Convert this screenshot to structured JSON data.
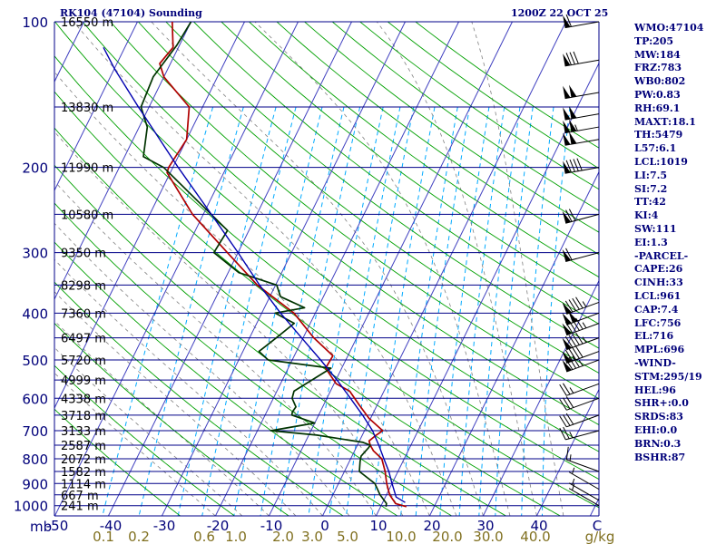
{
  "header": {
    "station": "RK104 (47104) Sounding",
    "time": "1200Z 22 OCT 25"
  },
  "indices": [
    "WMO:47104",
    "TP:205",
    "MW:184",
    "FRZ:783",
    "WB0:802",
    "PW:0.83",
    "RH:69.1",
    "MAXT:18.1",
    "TH:5479",
    "L57:6.1",
    "LCL:1019",
    "LI:7.5",
    "SI:7.2",
    "TT:42",
    "KI:4",
    "SW:111",
    "EI:1.3",
    "-PARCEL-",
    "CAPE:26",
    "CINH:33",
    "LCL:961",
    "CAP:7.4",
    "LFC:756",
    "EL:716",
    "MPL:696",
    "-WIND-",
    "STM:295/19",
    "HEL:96",
    "SHR+:0.0",
    "SRDS:83",
    "EHI:0.0",
    "BRN:0.3",
    "BSHR:87"
  ],
  "colors": {
    "isobar": "#000088",
    "isotherm": "#4040c0",
    "dry_adiabat": "#00a000",
    "moist_adiabat": "#808080",
    "mixing_ratio": "#00aaff",
    "temperature": "#b00000",
    "dewpoint": "#003300",
    "parcel": "#0000b0",
    "label": "#00007a",
    "mixing_label": "#807020"
  },
  "chart_data": {
    "type": "skew-t",
    "pressure_axis": {
      "unit_label": "mb",
      "ticks": [
        100,
        200,
        300,
        400,
        500,
        600,
        700,
        800,
        900,
        1000
      ],
      "ylim": [
        1050,
        100
      ],
      "scale": "log"
    },
    "temperature_axis": {
      "unit_label": "C",
      "ticks": [
        -50,
        -40,
        -30,
        -20,
        -10,
        0,
        10,
        20,
        30,
        40
      ],
      "xlim": [
        -50,
        40
      ]
    },
    "mixing_ratio_axis": {
      "unit_label": "g/kg",
      "ticks": [
        "0.1",
        "0.2",
        "0.6",
        "1.0",
        "2.0",
        "3.0",
        "5.0",
        "10.0",
        "20.0",
        "30.0",
        "40.0"
      ]
    },
    "height_levels": [
      {
        "p": 100,
        "label": "16550 m"
      },
      {
        "p": 150,
        "label": "13830 m"
      },
      {
        "p": 200,
        "label": "11990 m"
      },
      {
        "p": 250,
        "label": "10580 m"
      },
      {
        "p": 300,
        "label": "9350 m"
      },
      {
        "p": 350,
        "label": "8298 m"
      },
      {
        "p": 400,
        "label": "7360 m"
      },
      {
        "p": 450,
        "label": "6497 m"
      },
      {
        "p": 500,
        "label": "5720 m"
      },
      {
        "p": 550,
        "label": "4999 m"
      },
      {
        "p": 600,
        "label": "4338 m"
      },
      {
        "p": 650,
        "label": "3718 m"
      },
      {
        "p": 700,
        "label": "3133 m"
      },
      {
        "p": 750,
        "label": "2587 m"
      },
      {
        "p": 800,
        "label": "2072 m"
      },
      {
        "p": 850,
        "label": "1582 m"
      },
      {
        "p": 900,
        "label": "1114 m"
      },
      {
        "p": 950,
        "label": "667 m"
      },
      {
        "p": 1000,
        "label": "241 m"
      }
    ],
    "series": [
      {
        "key": "temperature",
        "points": [
          [
            1005,
            14.8
          ],
          [
            990,
            12.5
          ],
          [
            950,
            10.6
          ],
          [
            900,
            9.0
          ],
          [
            850,
            7.6
          ],
          [
            800,
            5.8
          ],
          [
            770,
            3.5
          ],
          [
            750,
            2.4
          ],
          [
            735,
            1.8
          ],
          [
            715,
            2.6
          ],
          [
            700,
            3.4
          ],
          [
            660,
            -0.3
          ],
          [
            620,
            -3.3
          ],
          [
            580,
            -6.4
          ],
          [
            560,
            -9.6
          ],
          [
            520,
            -13.0
          ],
          [
            490,
            -12.8
          ],
          [
            450,
            -18.0
          ],
          [
            400,
            -24.0
          ],
          [
            350,
            -33.4
          ],
          [
            300,
            -42.0
          ],
          [
            250,
            -52.0
          ],
          [
            205,
            -60.6
          ],
          [
            200,
            -60.8
          ],
          [
            175,
            -60.0
          ],
          [
            150,
            -62.5
          ],
          [
            130,
            -70.0
          ],
          [
            122,
            -72.0
          ],
          [
            113,
            -71.0
          ],
          [
            100,
            -73.5
          ]
        ]
      },
      {
        "key": "dewpoint",
        "points": [
          [
            1005,
            11.0
          ],
          [
            990,
            10.8
          ],
          [
            950,
            8.8
          ],
          [
            900,
            6.8
          ],
          [
            850,
            2.8
          ],
          [
            810,
            2.0
          ],
          [
            790,
            1.7
          ],
          [
            760,
            2.3
          ],
          [
            750,
            2.4
          ],
          [
            740,
            0.8
          ],
          [
            715,
            -8.5
          ],
          [
            700,
            -17.5
          ],
          [
            675,
            -10.0
          ],
          [
            650,
            -15.0
          ],
          [
            640,
            -15.2
          ],
          [
            625,
            -15.0
          ],
          [
            600,
            -16.5
          ],
          [
            580,
            -16.8
          ],
          [
            520,
            -12.0
          ],
          [
            500,
            -24.5
          ],
          [
            480,
            -27.0
          ],
          [
            450,
            -25.0
          ],
          [
            420,
            -23.0
          ],
          [
            400,
            -27.5
          ],
          [
            390,
            -22.5
          ],
          [
            370,
            -28.0
          ],
          [
            350,
            -29.8
          ],
          [
            330,
            -38.0
          ],
          [
            300,
            -44.5
          ],
          [
            270,
            -44.0
          ],
          [
            200,
            -61.7
          ],
          [
            190,
            -66.5
          ],
          [
            165,
            -68.5
          ],
          [
            150,
            -71.5
          ],
          [
            130,
            -72.0
          ],
          [
            112,
            -70.5
          ],
          [
            100,
            -70.0
          ]
        ]
      },
      {
        "key": "parcel",
        "points": [
          [
            985,
            14.2
          ],
          [
            960,
            12.0
          ],
          [
            900,
            10.0
          ],
          [
            850,
            8.3
          ],
          [
            800,
            6.2
          ],
          [
            750,
            4.0
          ],
          [
            700,
            1.5
          ],
          [
            650,
            -1.8
          ],
          [
            600,
            -5.6
          ],
          [
            550,
            -9.8
          ],
          [
            500,
            -14.7
          ],
          [
            450,
            -20.3
          ],
          [
            400,
            -26.5
          ],
          [
            350,
            -33.0
          ],
          [
            300,
            -40.0
          ],
          [
            250,
            -48.5
          ],
          [
            200,
            -59.0
          ],
          [
            150,
            -72.0
          ],
          [
            125,
            -80.0
          ],
          [
            113,
            -84.0
          ]
        ]
      }
    ],
    "wind_barbs": [
      {
        "p": 100,
        "dir": 260,
        "spd": 60
      },
      {
        "p": 120,
        "dir": 260,
        "spd": 80
      },
      {
        "p": 140,
        "dir": 260,
        "spd": 100
      },
      {
        "p": 155,
        "dir": 260,
        "spd": 100
      },
      {
        "p": 165,
        "dir": 260,
        "spd": 105
      },
      {
        "p": 175,
        "dir": 260,
        "spd": 100
      },
      {
        "p": 200,
        "dir": 260,
        "spd": 90
      },
      {
        "p": 250,
        "dir": 255,
        "spd": 70
      },
      {
        "p": 300,
        "dir": 255,
        "spd": 60
      },
      {
        "p": 380,
        "dir": 250,
        "spd": 95
      },
      {
        "p": 400,
        "dir": 250,
        "spd": 100
      },
      {
        "p": 420,
        "dir": 250,
        "spd": 95
      },
      {
        "p": 450,
        "dir": 250,
        "spd": 95
      },
      {
        "p": 480,
        "dir": 250,
        "spd": 90
      },
      {
        "p": 500,
        "dir": 250,
        "spd": 85
      },
      {
        "p": 560,
        "dir": 250,
        "spd": 25
      },
      {
        "p": 600,
        "dir": 250,
        "spd": 30
      },
      {
        "p": 650,
        "dir": 250,
        "spd": 30
      },
      {
        "p": 700,
        "dir": 255,
        "spd": 25
      },
      {
        "p": 850,
        "dir": 290,
        "spd": 15
      },
      {
        "p": 925,
        "dir": 300,
        "spd": 5
      },
      {
        "p": 975,
        "dir": 300,
        "spd": 5
      },
      {
        "p": 1000,
        "dir": 300,
        "spd": 5
      }
    ]
  }
}
